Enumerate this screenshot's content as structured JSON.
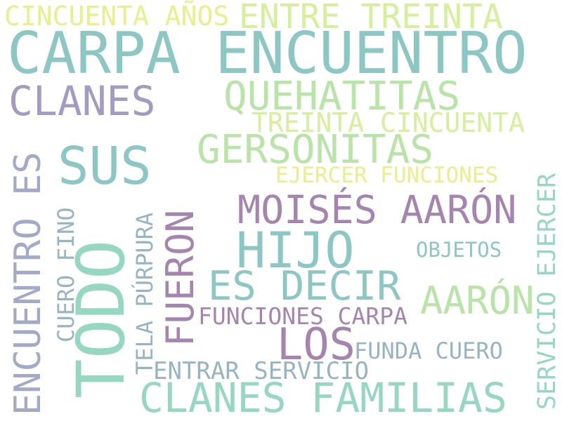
{
  "colors": {
    "background": "#ffffff",
    "teal": "#8cc7c4",
    "lavender": "#a39bc2",
    "mauve": "#a585b0",
    "mint": "#95d7c0",
    "green": "#b9e4a7",
    "lime": "#d6ef9d",
    "yellow": "#e6f08d",
    "blue_gray": "#96b4c2",
    "slate": "#a2aac8"
  },
  "words": [
    {
      "text": "CINCUENTA AÑOS",
      "color": "yellow"
    },
    {
      "text": "ENTRE TREINTA",
      "color": "lime"
    },
    {
      "text": "CARPA ENCUENTRO",
      "color": "teal"
    },
    {
      "text": "CLANES",
      "color": "lavender"
    },
    {
      "text": "QUEHATITAS",
      "color": "green"
    },
    {
      "text": "TREINTA CINCUENTA",
      "color": "lime"
    },
    {
      "text": "SUS",
      "color": "teal"
    },
    {
      "text": "GERSONITAS",
      "color": "green"
    },
    {
      "text": "ENCUENTRO ES",
      "color": "slate"
    },
    {
      "text": "EJERCER FUNCIONES",
      "color": "yellow"
    },
    {
      "text": "MOISÉS AARÓN",
      "color": "mauve"
    },
    {
      "text": "HIJO",
      "color": "teal"
    },
    {
      "text": "TODO",
      "color": "mint"
    },
    {
      "text": "CUERO FINO",
      "color": "blue_gray"
    },
    {
      "text": "TELA PÚRPURA",
      "color": "blue_gray"
    },
    {
      "text": "FUERON",
      "color": "mauve"
    },
    {
      "text": "OBJETOS",
      "color": "teal"
    },
    {
      "text": "SERVICIO EJERCER",
      "color": "mint"
    },
    {
      "text": "ES DECIR",
      "color": "teal"
    },
    {
      "text": "AARÓN",
      "color": "green"
    },
    {
      "text": "FUNCIONES CARPA",
      "color": "mauve"
    },
    {
      "text": "LOS",
      "color": "mauve"
    },
    {
      "text": "FUNDA CUERO",
      "color": "blue_gray"
    },
    {
      "text": "ENTRAR SERVICIO",
      "color": "blue_gray"
    },
    {
      "text": "CLANES FAMILIAS",
      "color": "mint"
    }
  ]
}
